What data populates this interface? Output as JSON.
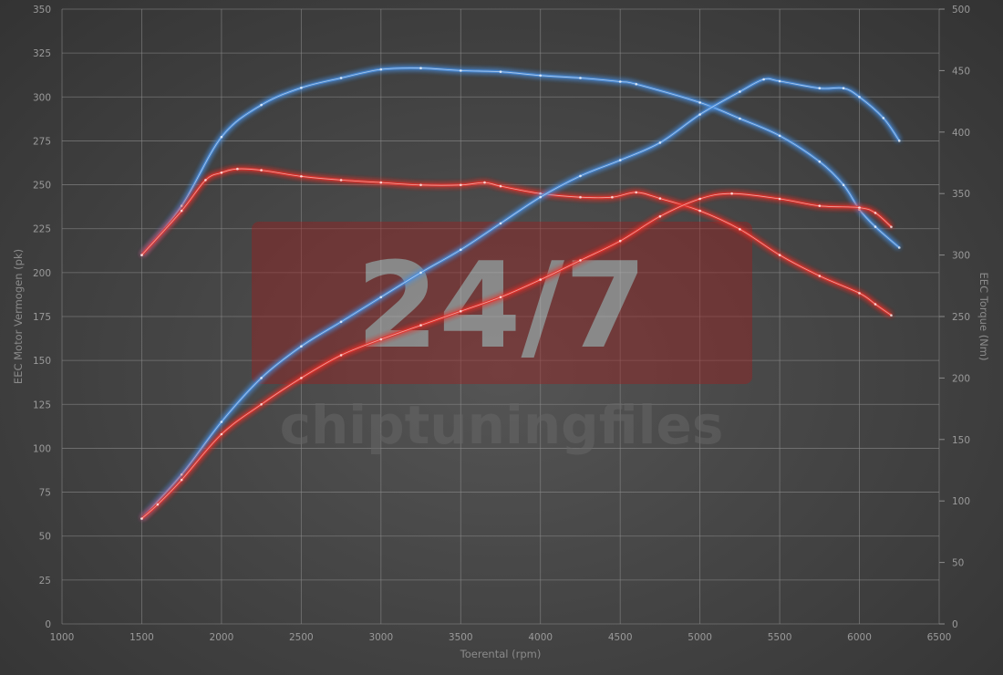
{
  "chart_data": {
    "type": "line",
    "title": "",
    "xlabel": "Toerental (rpm)",
    "ylabel_left": "EEC Motor Vermogen (pk)",
    "ylabel_right": "EEC Torque (Nm)",
    "xlim": [
      1000,
      6500
    ],
    "ylim_left": [
      0,
      350
    ],
    "ylim_right": [
      0,
      500
    ],
    "x_ticks": [
      "1000",
      "1500",
      "2000",
      "2500",
      "3000",
      "3500",
      "4000",
      "4500",
      "5000",
      "5500",
      "6000",
      "6500"
    ],
    "y_left_ticks": [
      "0",
      "25",
      "50",
      "75",
      "100",
      "125",
      "150",
      "175",
      "200",
      "225",
      "250",
      "275",
      "300",
      "325",
      "350"
    ],
    "y_right_ticks": [
      "0",
      "50",
      "100",
      "150",
      "200",
      "250",
      "300",
      "350",
      "400",
      "450",
      "500"
    ],
    "grid": true,
    "watermark": {
      "big": "24/7",
      "small": "chiptuningfiles"
    },
    "series": [
      {
        "axis": "right",
        "color": "#4a90e2",
        "x": [
          1500,
          1750,
          2000,
          2250,
          2500,
          2750,
          3000,
          3250,
          3500,
          3750,
          4000,
          4250,
          4500,
          4600,
          5000,
          5250,
          5500,
          5750,
          5900,
          6000,
          6100,
          6250
        ],
        "values": [
          300,
          340,
          396,
          422,
          436,
          444,
          451,
          452,
          450,
          449,
          446,
          444,
          441,
          439,
          424,
          411,
          397,
          376,
          357,
          337,
          323,
          306
        ]
      },
      {
        "axis": "right",
        "color": "#e8302a",
        "x": [
          1500,
          1750,
          1900,
          2000,
          2100,
          2250,
          2500,
          2750,
          3000,
          3250,
          3500,
          3650,
          3750,
          4000,
          4250,
          4450,
          4600,
          4750,
          5000,
          5250,
          5500,
          5750,
          6000,
          6100,
          6200
        ],
        "values": [
          300,
          336,
          361,
          367,
          370,
          369,
          364,
          361,
          359,
          357,
          357,
          359,
          356,
          350,
          347,
          347,
          351,
          346,
          336,
          321,
          300,
          283,
          269,
          260,
          251
        ]
      },
      {
        "axis": "left",
        "color": "#4a90e2",
        "x": [
          1500,
          1750,
          2000,
          2250,
          2500,
          2750,
          3000,
          3250,
          3500,
          3750,
          4000,
          4250,
          4500,
          4750,
          5000,
          5250,
          5400,
          5500,
          5750,
          5900,
          6000,
          6150,
          6250
        ],
        "values": [
          60,
          85,
          115,
          140,
          158,
          172,
          186,
          200,
          213,
          228,
          243,
          255,
          264,
          274,
          290,
          303,
          310,
          309,
          305,
          305,
          300,
          288,
          275
        ]
      },
      {
        "axis": "left",
        "color": "#e8302a",
        "x": [
          1500,
          1600,
          1750,
          2000,
          2250,
          2500,
          2750,
          3000,
          3250,
          3500,
          3750,
          4000,
          4250,
          4500,
          4750,
          5000,
          5200,
          5500,
          5750,
          6000,
          6100,
          6200
        ],
        "values": [
          60,
          68,
          82,
          108,
          125,
          140,
          153,
          162,
          170,
          178,
          186,
          196,
          207,
          218,
          232,
          242,
          245,
          242,
          238,
          237,
          234,
          226
        ]
      }
    ]
  }
}
